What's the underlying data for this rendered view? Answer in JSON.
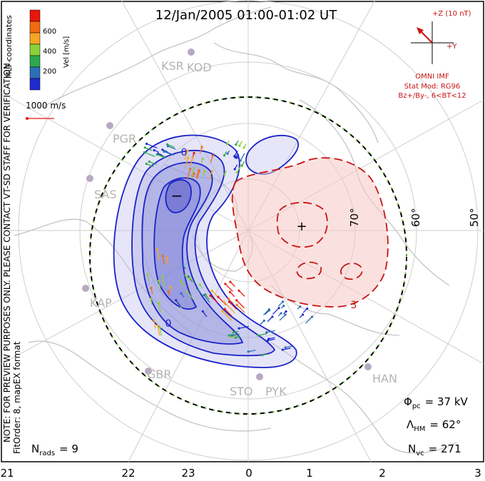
{
  "title": "12/Jan/2005 01:00-01:02 UT",
  "colorbar": {
    "label": "Vel [m/s]",
    "ticks": [
      "600",
      "400",
      "200"
    ],
    "colors": [
      "#e8160d",
      "#f26b12",
      "#f5a623",
      "#8bd13a",
      "#2fa84f",
      "#2c6fb7",
      "#1f2bd1"
    ]
  },
  "coord_label": "MLT coordinates",
  "ref_vector": "1000 m/s",
  "imf": {
    "bz_label": "+Z (10 nT)",
    "by_label": "+Y",
    "title": "OMNI IMF",
    "stat_mod": "Stat Mod: RG96",
    "condition": "Bz+/By-, 6<BT<12"
  },
  "stations": [
    "KSR",
    "KOD",
    "PGR",
    "SAS",
    "KAP",
    "GBR",
    "STO",
    "PYK",
    "HAN"
  ],
  "lat_labels": [
    "70°",
    "60°",
    "50°"
  ],
  "mlt_labels": [
    "21",
    "22",
    "23",
    "0",
    "1",
    "2",
    "3"
  ],
  "side_note": "NOTE: FOR PREVIEW PURPOSES ONLY. PLEASE CONTACT VT-SD STAFF FOR VERIFICATION.",
  "fit_order": "FitOrder: 8, mapEX format",
  "stats": {
    "nrads_sym": "N",
    "nrads_sub": "rads",
    "nrads_val": "= 9",
    "phi_sym": "Φ",
    "phi_sub": "pc",
    "phi_val": "= 37 kV",
    "lam_sym": "Λ",
    "lam_sub": "HM",
    "lam_val": "= 62°",
    "nvc_sym": "N",
    "nvc_sub": "vc",
    "nvc_val": "= 271"
  },
  "contours": {
    "neg_marker": "−",
    "pos_marker": "+",
    "neg_label": "0",
    "pos_label": "3"
  },
  "colors": {
    "negative": "#1a22c9",
    "positive": "#c81414",
    "neg_fill": "#b6b8ea",
    "pos_fill": "#f5c8c4",
    "grid": "#cfcfcf",
    "coast": "#c4c4c4",
    "station": "#b7a9c2"
  }
}
